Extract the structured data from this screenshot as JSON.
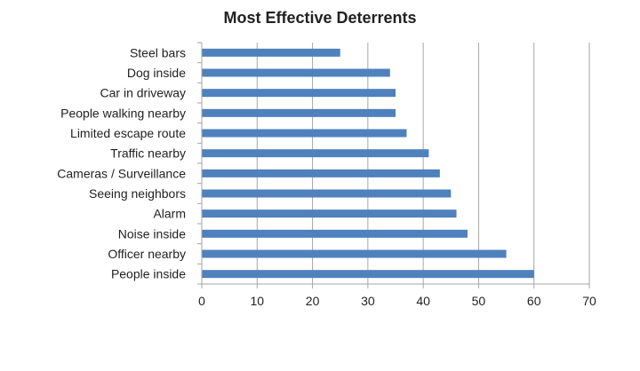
{
  "chart_data": {
    "type": "bar",
    "orientation": "horizontal",
    "title": "Most Effective Deterrents",
    "xlabel": "",
    "ylabel": "",
    "categories": [
      "Steel bars",
      "Dog inside",
      "Car in driveway",
      "People walking nearby",
      "Limited escape route",
      "Traffic nearby",
      "Cameras / Surveillance",
      "Seeing neighbors",
      "Alarm",
      "Noise inside",
      "Officer nearby",
      "People inside"
    ],
    "values": [
      25,
      34,
      35,
      35,
      37,
      41,
      43,
      45,
      46,
      48,
      55,
      60
    ],
    "xlim": [
      0,
      70
    ],
    "xticks": [
      0,
      10,
      20,
      30,
      40,
      50,
      60,
      70
    ],
    "grid": "vertical",
    "legend": "none",
    "bar_color": "#4f81bd",
    "grid_color": "#a6a6a6",
    "axis_color": "#a6a6a6"
  }
}
